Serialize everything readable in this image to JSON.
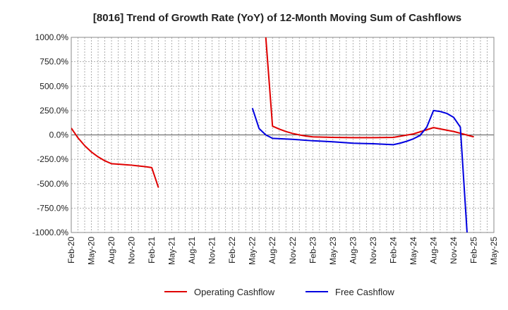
{
  "chart_data": {
    "type": "line",
    "title": "[8016]  Trend of Growth Rate (YoY) of 12-Month Moving Sum of Cashflows",
    "xlabel": "",
    "ylabel": "",
    "ylim": [
      -1000,
      1000
    ],
    "yticks": [
      1000,
      750,
      500,
      250,
      0,
      -250,
      -500,
      -750,
      -1000
    ],
    "ytick_labels": [
      "1000.0%",
      "750.0%",
      "500.0%",
      "250.0%",
      "0.0%",
      "-250.0%",
      "-500.0%",
      "-750.0%",
      "-1000.0%"
    ],
    "x_start": "2020-02",
    "x_end": "2025-05",
    "xtick_labels": [
      "Feb-20",
      "May-20",
      "Aug-20",
      "Nov-20",
      "Feb-21",
      "May-21",
      "Aug-21",
      "Nov-21",
      "Feb-22",
      "May-22",
      "Aug-22",
      "Nov-22",
      "Feb-23",
      "May-23",
      "Aug-23",
      "Nov-23",
      "Feb-24",
      "May-24",
      "Aug-24",
      "Nov-24",
      "Feb-25",
      "May-25"
    ],
    "grid": true,
    "legend_position": "bottom",
    "series": [
      {
        "name": "Operating Cashflow",
        "color": "#e00000",
        "segments": [
          [
            [
              "2020-02",
              70
            ],
            [
              "2020-03",
              -30
            ],
            [
              "2020-04",
              -110
            ],
            [
              "2020-05",
              -175
            ],
            [
              "2020-06",
              -225
            ],
            [
              "2020-07",
              -265
            ],
            [
              "2020-08",
              -295
            ],
            [
              "2020-09",
              -300
            ],
            [
              "2020-10",
              -305
            ],
            [
              "2020-11",
              -310
            ],
            [
              "2020-12",
              -318
            ],
            [
              "2021-01",
              -325
            ],
            [
              "2021-02",
              -335
            ],
            [
              "2021-03",
              -540
            ]
          ],
          [
            [
              "2022-07",
              1000
            ],
            [
              "2022-08",
              90
            ],
            [
              "2022-09",
              60
            ],
            [
              "2022-10",
              35
            ],
            [
              "2022-11",
              15
            ],
            [
              "2022-12",
              0
            ],
            [
              "2023-01",
              -12
            ],
            [
              "2023-02",
              -20
            ],
            [
              "2023-05",
              -25
            ],
            [
              "2023-08",
              -28
            ],
            [
              "2023-11",
              -28
            ],
            [
              "2024-02",
              -25
            ],
            [
              "2024-05",
              10
            ],
            [
              "2024-08",
              75
            ],
            [
              "2024-11",
              35
            ],
            [
              "2025-02",
              -20
            ]
          ]
        ]
      },
      {
        "name": "Free Cashflow",
        "color": "#0000e0",
        "segments": [
          [
            [
              "2022-05",
              275
            ],
            [
              "2022-06",
              65
            ],
            [
              "2022-07",
              0
            ],
            [
              "2022-08",
              -35
            ],
            [
              "2022-11",
              -45
            ],
            [
              "2023-02",
              -60
            ],
            [
              "2023-05",
              -70
            ],
            [
              "2023-08",
              -85
            ],
            [
              "2023-11",
              -90
            ],
            [
              "2024-02",
              -100
            ],
            [
              "2024-03",
              -85
            ],
            [
              "2024-04",
              -65
            ],
            [
              "2024-05",
              -40
            ],
            [
              "2024-06",
              -5
            ],
            [
              "2024-07",
              80
            ],
            [
              "2024-08",
              250
            ],
            [
              "2024-09",
              240
            ],
            [
              "2024-10",
              220
            ],
            [
              "2024-11",
              180
            ],
            [
              "2024-12",
              80
            ],
            [
              "2025-01",
              -1000
            ]
          ]
        ]
      }
    ]
  }
}
